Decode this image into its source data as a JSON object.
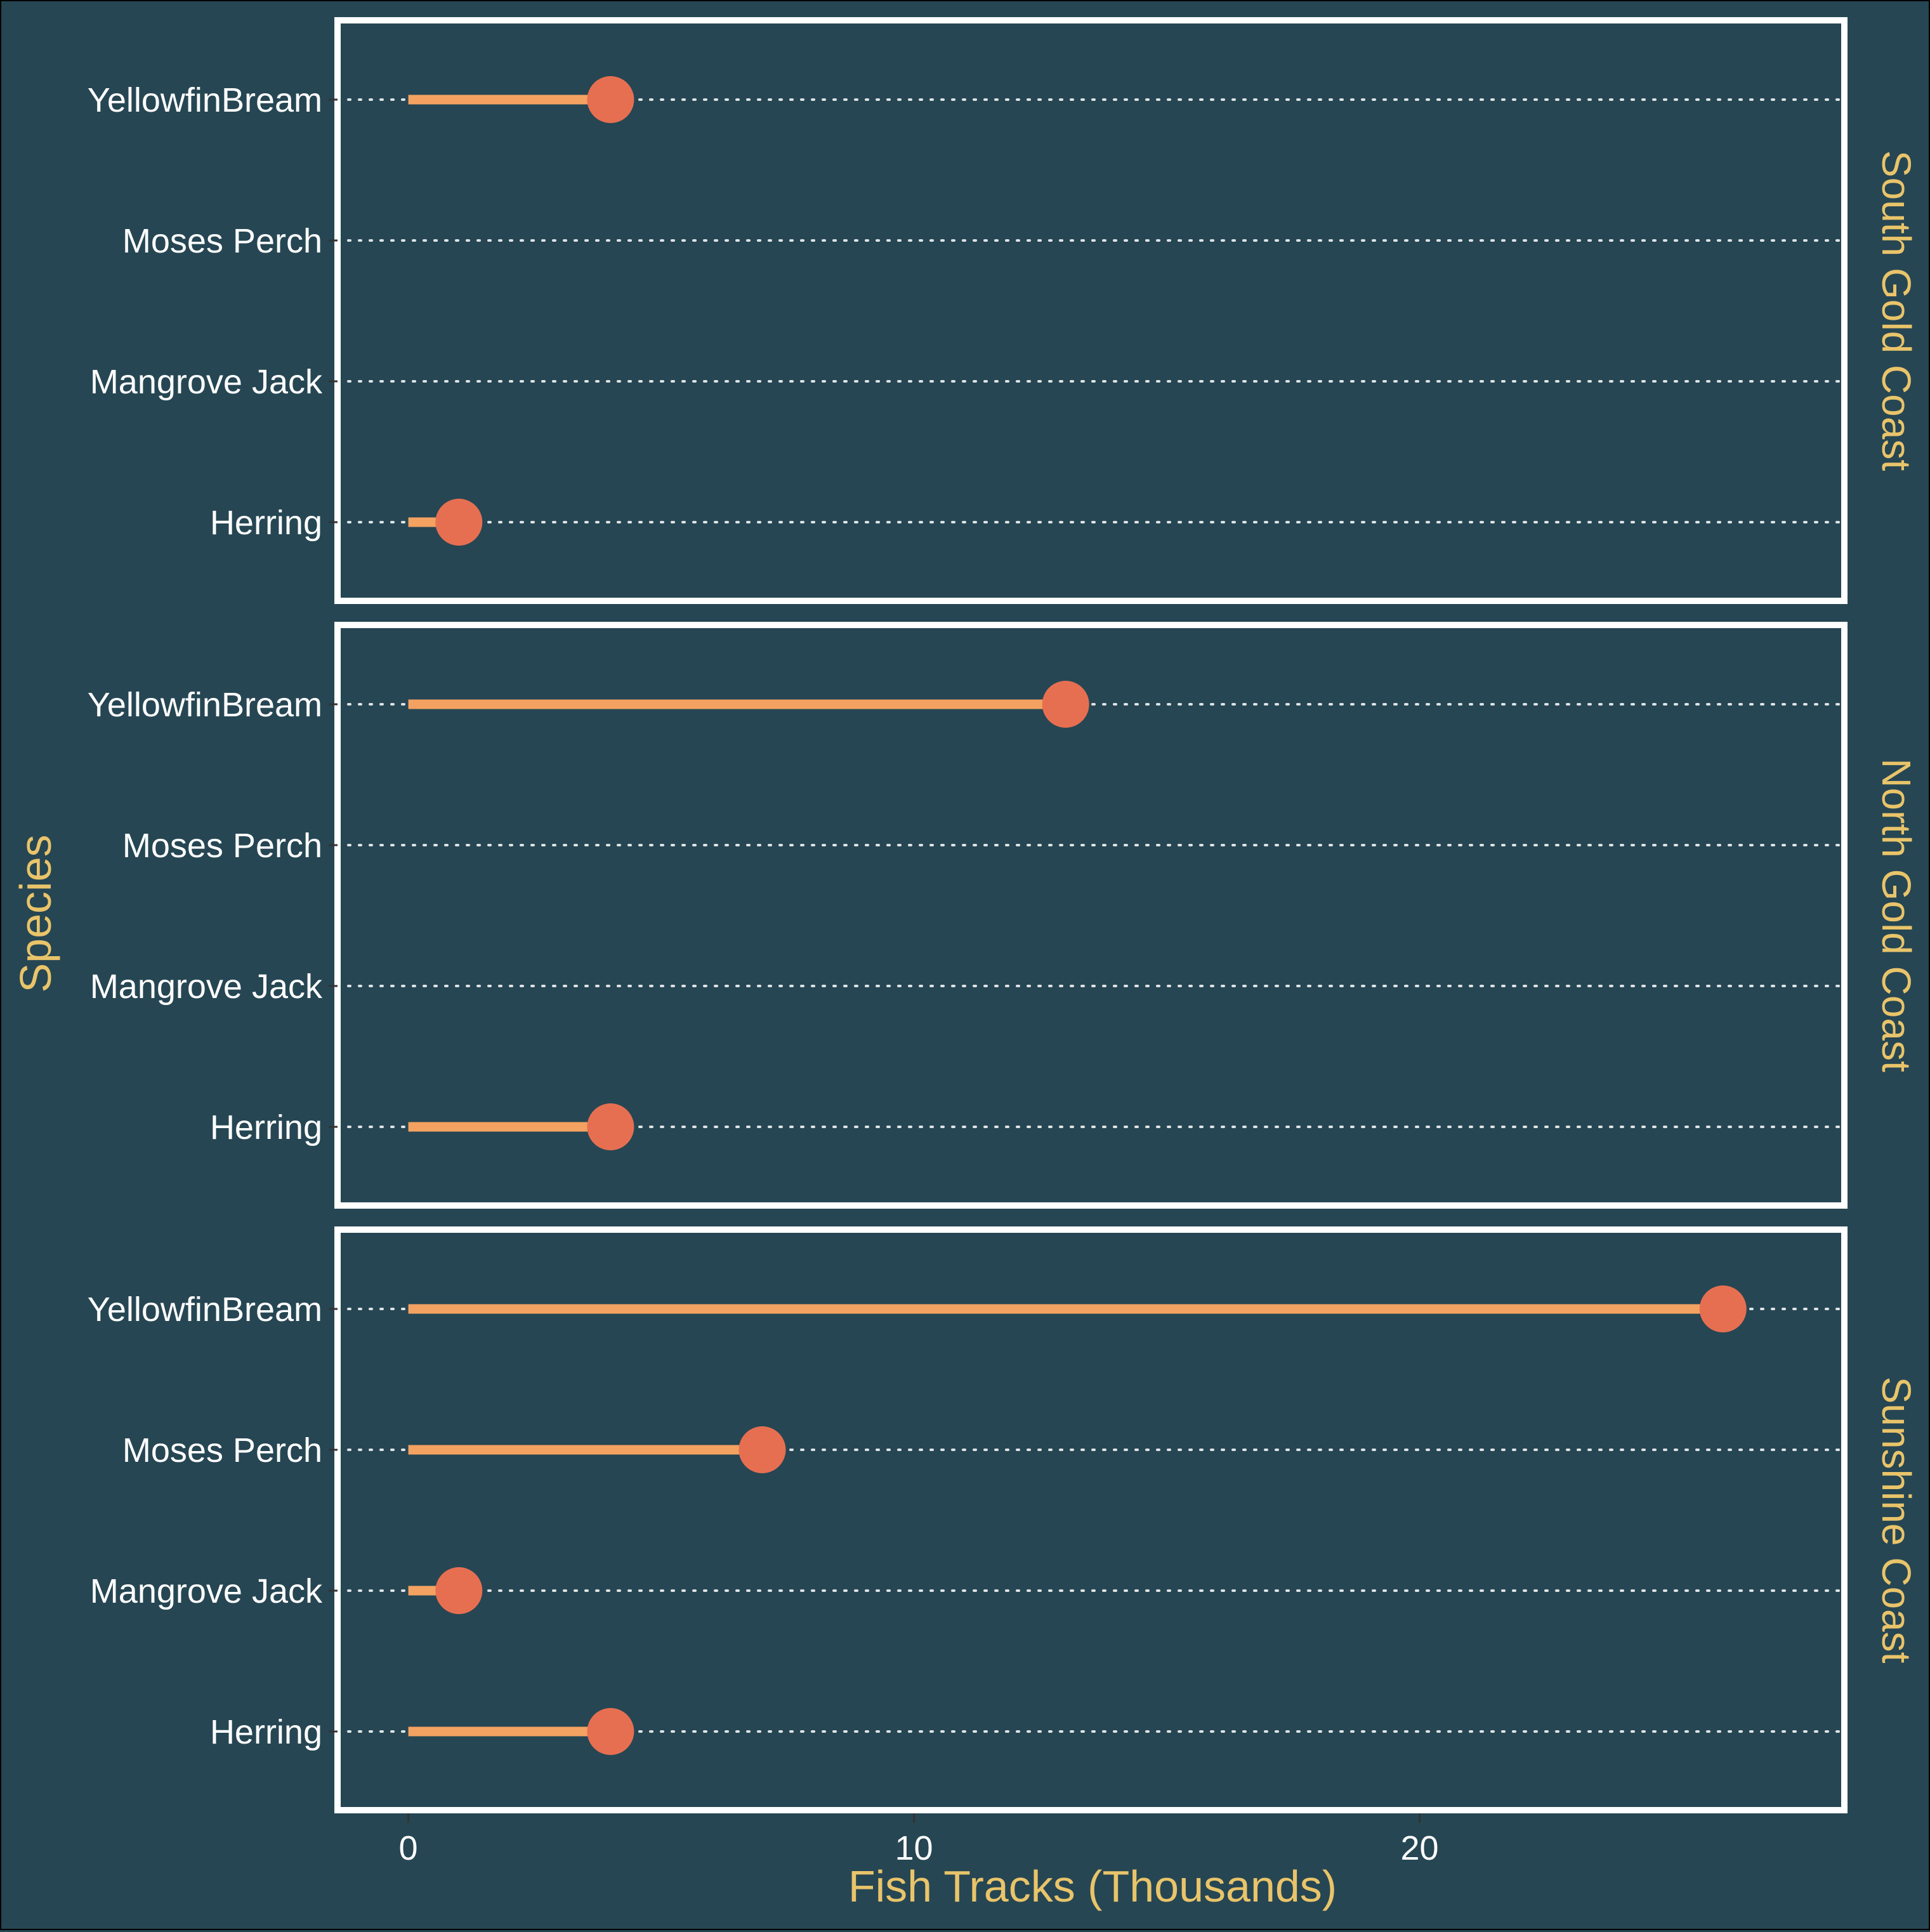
{
  "chart_data": {
    "type": "lollipop",
    "xlabel": "Fish Tracks (Thousands)",
    "ylabel": "Species",
    "xlim": [
      -1.4,
      28.4
    ],
    "x_ticks": [
      0,
      10,
      20
    ],
    "x_tick_labels": [
      "0",
      "10",
      "20"
    ],
    "categories": [
      "YellowfinBream",
      "Moses Perch",
      "Mangrove Jack",
      "Herring"
    ],
    "facets": [
      {
        "name": "South Gold Coast",
        "values": [
          4.0,
          null,
          null,
          1.0
        ]
      },
      {
        "name": "North Gold Coast",
        "values": [
          13.0,
          null,
          null,
          4.0
        ]
      },
      {
        "name": "Sunshine Coast",
        "values": [
          26.0,
          7.0,
          1.0,
          4.0
        ]
      }
    ],
    "grid": "horizontal dotted",
    "colors": {
      "background": "#264653",
      "stem": "#F4A261",
      "dot": "#E76F51",
      "axis_text": "#FFFFFF",
      "title_text": "#E9C46A",
      "panel_border": "#FFFFFF"
    }
  }
}
